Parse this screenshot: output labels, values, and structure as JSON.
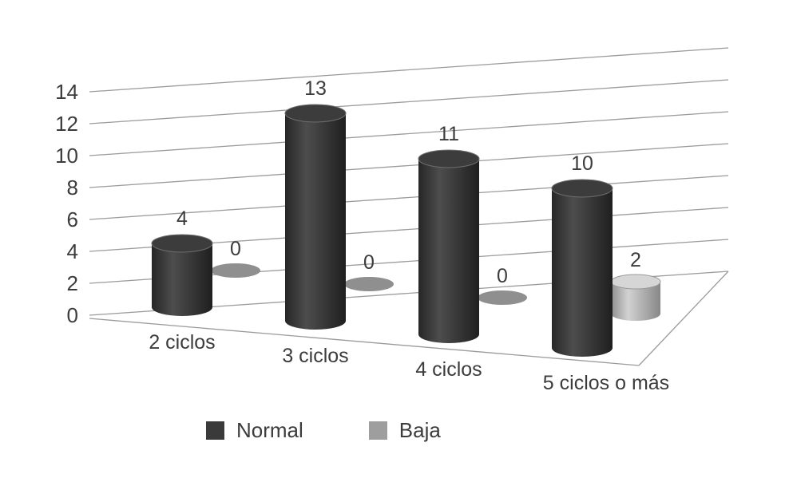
{
  "chart_data": {
    "type": "bar",
    "style": "3d-cylinder",
    "title": "",
    "xlabel": "",
    "ylabel": "",
    "background": "#ffffff",
    "grid": true,
    "categories": [
      "2 ciclos",
      "3 ciclos",
      "4 ciclos",
      "5 ciclos o más"
    ],
    "series": [
      {
        "name": "Normal",
        "color": "#3a3a3a",
        "values": [
          4,
          13,
          11,
          10
        ],
        "data_labels": [
          "4",
          "13",
          "11",
          "10"
        ]
      },
      {
        "name": "Baja",
        "color": "#9e9e9e",
        "values": [
          0,
          0,
          0,
          2
        ],
        "data_labels": [
          "0",
          "0",
          "0",
          "2"
        ]
      }
    ],
    "y_axis": {
      "min": 0,
      "max": 14,
      "step": 2,
      "ticks": [
        0,
        2,
        4,
        6,
        8,
        10,
        12,
        14
      ],
      "tick_labels": [
        "0",
        "2",
        "4",
        "6",
        "8",
        "10",
        "12",
        "14"
      ]
    },
    "legend": {
      "position": "bottom",
      "entries": [
        "Normal",
        "Baja"
      ]
    },
    "colors": {
      "grid_line": "#9b9b9b",
      "text": "#3c3c3c",
      "normal_top": "#3c3c3c",
      "baja_top": "#d6d6d6",
      "baja_zero_disc": "#8f8f8f"
    }
  }
}
